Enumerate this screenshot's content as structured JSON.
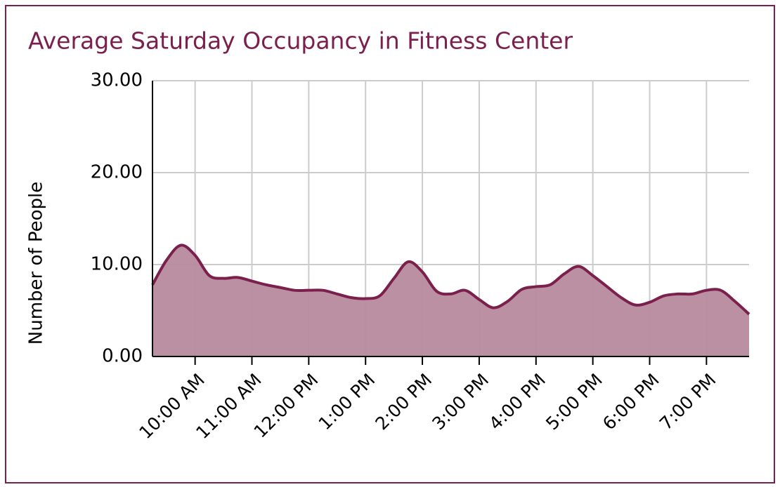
{
  "chart_data": {
    "type": "area",
    "title": "Average Saturday Occupancy in Fitness Center",
    "y_label": "Number of People",
    "x": [
      9.25,
      9.5,
      9.75,
      10,
      10.25,
      10.5,
      10.75,
      11,
      11.25,
      11.5,
      11.75,
      12,
      12.25,
      12.5,
      12.75,
      13,
      13.25,
      13.5,
      13.75,
      14,
      14.25,
      14.5,
      14.75,
      15,
      15.25,
      15.5,
      15.75,
      16,
      16.25,
      16.5,
      16.75,
      17,
      17.25,
      17.5,
      17.75,
      18,
      18.25,
      18.5,
      18.75,
      19,
      19.25,
      19.5,
      19.75
    ],
    "values": [
      7.8,
      10.5,
      12.1,
      11.0,
      8.8,
      8.5,
      8.6,
      8.2,
      7.8,
      7.5,
      7.2,
      7.2,
      7.2,
      6.8,
      6.4,
      6.3,
      6.6,
      8.5,
      10.3,
      9.2,
      7.1,
      6.8,
      7.2,
      6.2,
      5.3,
      6.0,
      7.3,
      7.6,
      7.8,
      9.0,
      9.8,
      8.8,
      7.6,
      6.4,
      5.6,
      5.9,
      6.6,
      6.8,
      6.8,
      7.2,
      7.2,
      6.0,
      4.6
    ],
    "color": "#7b1f4c",
    "fill": "#b88a9e",
    "xlim": [
      9.25,
      19.75
    ],
    "xticks": [
      {
        "value": 10,
        "label": "10:00 AM"
      },
      {
        "value": 11,
        "label": "11:00 AM"
      },
      {
        "value": 12,
        "label": "12:00 PM"
      },
      {
        "value": 13,
        "label": "1:00 PM"
      },
      {
        "value": 14,
        "label": "2:00 PM"
      },
      {
        "value": 15,
        "label": "3:00 PM"
      },
      {
        "value": 16,
        "label": "4:00 PM"
      },
      {
        "value": 17,
        "label": "5:00 PM"
      },
      {
        "value": 18,
        "label": "6:00 PM"
      },
      {
        "value": 19,
        "label": "7:00 PM"
      }
    ],
    "ylim": [
      0,
      30
    ],
    "yticks": [
      {
        "value": 0,
        "label": "0.00"
      },
      {
        "value": 10,
        "label": "10.00"
      },
      {
        "value": 20,
        "label": "20.00"
      },
      {
        "value": 30,
        "label": "30.00"
      }
    ],
    "grid": true
  }
}
